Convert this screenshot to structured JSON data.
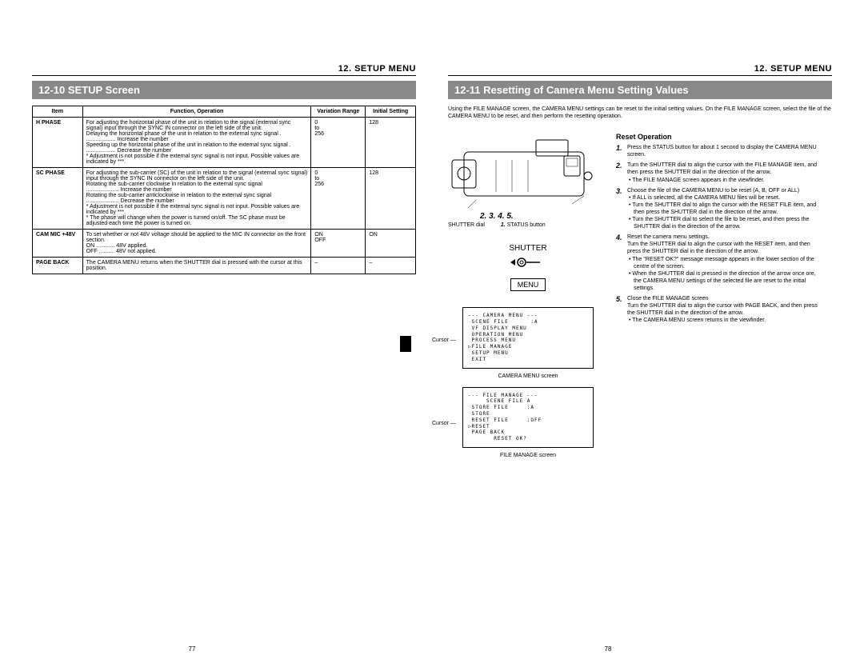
{
  "chapter": "12. SETUP MENU",
  "leftPage": {
    "sectionTitle": "12-10  SETUP Screen",
    "table": {
      "headers": [
        "Item",
        "Function, Operation",
        "Variation Range",
        "Initial Setting"
      ],
      "rows": [
        {
          "item": "H PHASE",
          "func": "For adjusting the horizontal phase of the unit in relation to the signal (external sync signal) input through the SYNC IN connector on the left side of the unit.\nDelaying the horizontal phase of the unit in relation to the external sync signal .\n................... Increase the number\nSpeeding up the horizontal phase of the unit in relation to the external sync signal .\n................... Decrease the number\n* Adjustment is not possible if the external sync signal is not input. Possible values are indicated by ***.",
          "range": "0\nto\n256",
          "initial": "128"
        },
        {
          "item": "SC PHASE",
          "func": "For adjusting the sub-carrier (SC) of the unit in relation to the signal (external sync signal) input through the SYNC IN connector on the left side of the unit.\nRotating the sub-carrier clockwise in relation to the external sync signal\n..................... Increase the number\nRotating the sub-carrier anticlockwise in relation to the external sync signal\n..................... Decrease the number\n* Adjustment is not possible if the external sync signal is not input. Possible values are indicated by ***.\n* The phase will change when the power is turned on/off. The SC phase must be adjusted each time the power is turned on.",
          "range": "0\nto\n256",
          "initial": "128"
        },
        {
          "item": "CAM MIC +48V",
          "func": "To set whether or not 48V voltage should be applied to the MIC IN connector on the front section.\nON ............ 48V applied.\nOFF .......... 48V not applied.",
          "range": "ON\nOFF",
          "initial": "ON"
        },
        {
          "item": "PAGE BACK",
          "func": "The CAMERA MENU returns when the SHUTTER dial is pressed with the cursor at this position.",
          "range": "–",
          "initial": "–"
        }
      ]
    },
    "pageNumber": "77"
  },
  "rightPage": {
    "sectionTitle": "12-11  Resetting of Camera Menu Setting Values",
    "intro": "Using the FILE MANAGE screen, the CAMERA MENU settings can be reset to the initial setting values. On the FILE MANAGE screen, select the file of the CAMERA MENU to be reset, and then perform the resetting operation.",
    "subheading": "Reset Operation",
    "diagramNums": "2. 3. 4. 5.",
    "shutterDialLabel": "SHUTTER dial",
    "statusButtonLabel": "STATUS button",
    "statusButtonNum": "1.",
    "shutterWord": "SHUTTER",
    "menuWord": "MENU",
    "steps": [
      {
        "n": "1.",
        "body": "Press the STATUS button for about 1 second to display the CAMERA MENU screen."
      },
      {
        "n": "2.",
        "body": "Turn the SHUTTER dial to align the cursor with the FILE MANAGE item, and then press the SHUTTER dial in the direction of the arrow.",
        "bullets": [
          "The FILE MANAGE screen appears in the viewfinder."
        ]
      },
      {
        "n": "3.",
        "body": "Choose the file of the CAMERA MENU to be reset (A, B, OFF or ALL)",
        "bullets": [
          "If ALL is selected, all the CAMERA MENU files will be reset.",
          "Turn the SHUTTER dial to align the cursor with the RESET FILE item, and then press the SHUTTER dial in the direction of the arrow.",
          "Turn the SHUTTER dial to select the file to be reset, and then press the SHUTTER dial in the direction of the arrow."
        ]
      },
      {
        "n": "4.",
        "body": "Reset the camera menu settings.\nTurn the SHUTTER dial to align the cursor with the RESET item, and then press the SHUTTER dial in the direction of the arrow.",
        "bullets": [
          "The \"RESET OK?\" message message appears in the lower section of the centre of the screen.",
          "When the SHUTTER dial is pressed in the direction of the arrow once ore, the CAMERA MENU settings of the selected file are reset to the initial settings."
        ]
      },
      {
        "n": "5.",
        "body": "Close the FILE MANAGE screen\nTurn the SHUTTER dial to align the cursor with PAGE BACK, and then press the SHUTTER dial in the direction of the arrow.",
        "bullets": [
          "The CAMERA MENU screen returns in the viewfinder."
        ]
      }
    ],
    "cursorLabel": "Cursor",
    "cameraMenuScreen": "--- CAMERA MENU ---\n SCENE FILE      :A\n VF DISPLAY MENU\n OPERATION MENU\n PROCESS MENU\n▷FILE MANAGE\n SETUP MENU\n EXIT",
    "cameraMenuCaption": "CAMERA MENU screen",
    "fileManageScreen": "--- FILE MANAGE ---\n     SCENE FILE A\n STORE FILE     :A\n STORE\n RESET FILE     :OFF\n▷RESET\n PAGE BACK\n       RESET OK?",
    "fileManageCaption": "FILE MANAGE screen",
    "pageNumber": "78"
  },
  "colors": {
    "sectionBar": "#888888",
    "text": "#000000",
    "background": "#ffffff"
  }
}
